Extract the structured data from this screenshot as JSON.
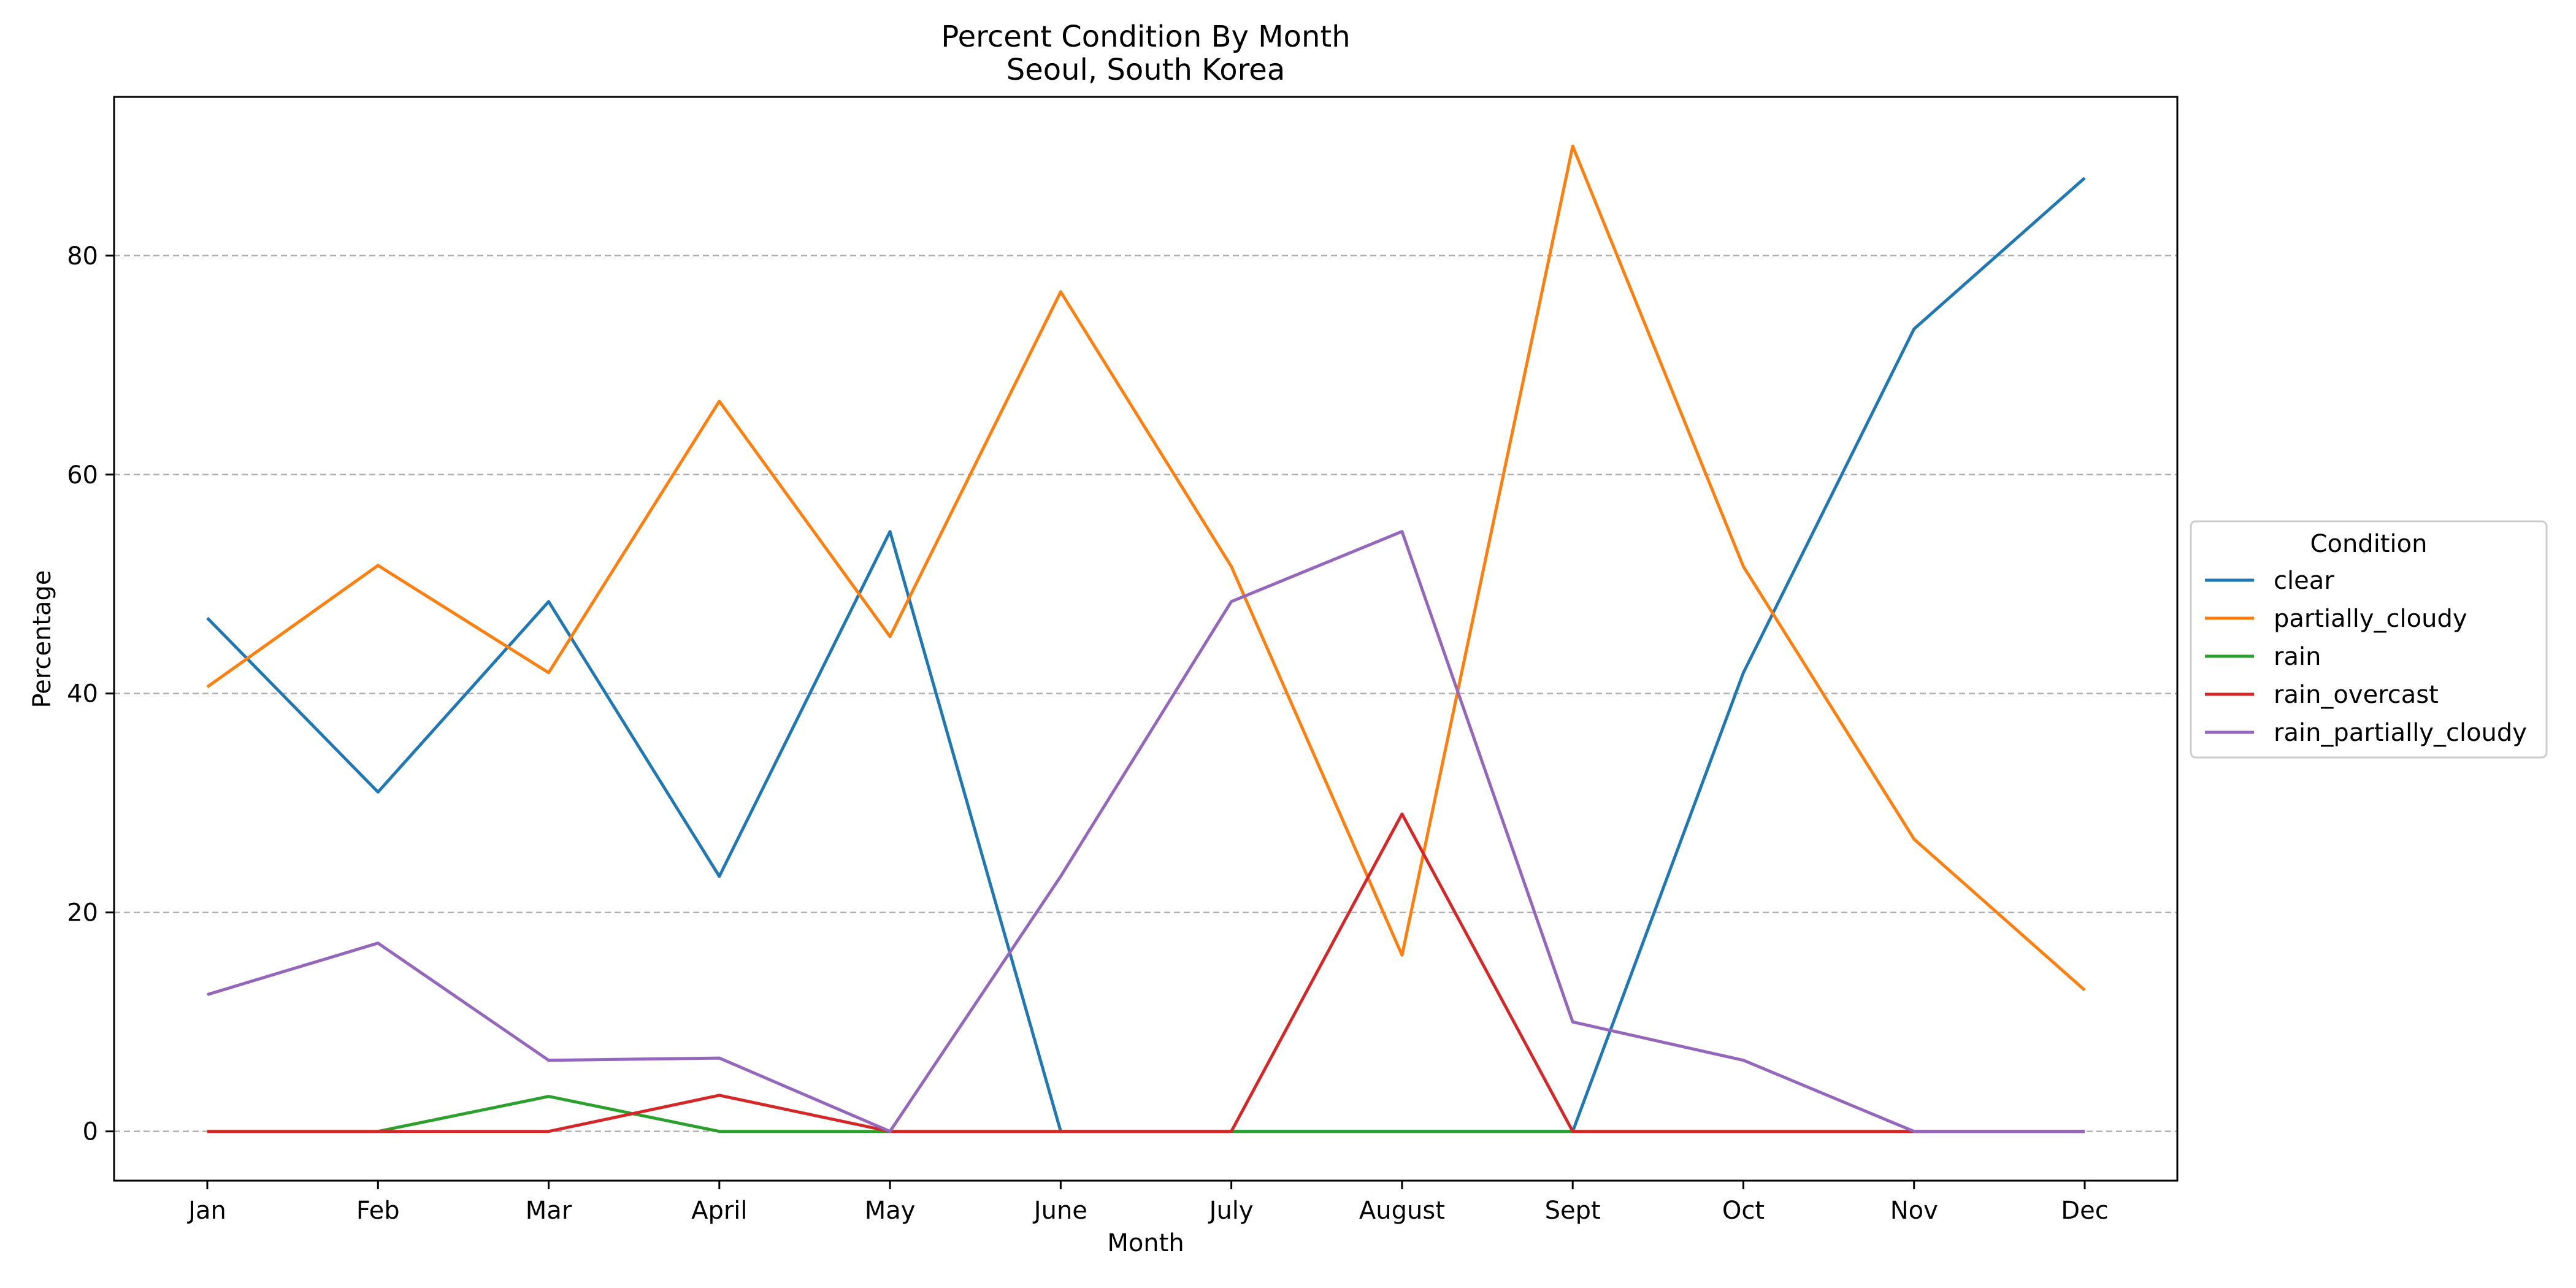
{
  "chart_data": {
    "type": "line",
    "title": "Percent Condition By Month",
    "subtitle": "Seoul, South Korea",
    "xlabel": "Month",
    "ylabel": "Percentage",
    "categories": [
      "Jan",
      "Feb",
      "Mar",
      "April",
      "May",
      "June",
      "July",
      "August",
      "Sept",
      "Oct",
      "Nov",
      "Dec"
    ],
    "ylim": [
      -4.5,
      94.5
    ],
    "yticks": [
      0,
      20,
      40,
      60,
      80
    ],
    "grid": "horizontal-dashed",
    "legend_title": "Condition",
    "legend_position": "right-outside",
    "series": [
      {
        "name": "clear",
        "color": "#1f77b4",
        "values": [
          46.9,
          31.0,
          48.4,
          23.3,
          54.8,
          0.0,
          0.0,
          0.0,
          0.0,
          41.9,
          73.3,
          87.1
        ]
      },
      {
        "name": "partially_cloudy",
        "color": "#ff7f0e",
        "values": [
          40.6,
          51.7,
          41.9,
          66.7,
          45.2,
          76.7,
          51.6,
          16.1,
          90.0,
          51.6,
          26.7,
          12.9
        ]
      },
      {
        "name": "rain",
        "color": "#2ca02c",
        "values": [
          0.0,
          0.0,
          3.2,
          0.0,
          0.0,
          0.0,
          0.0,
          0.0,
          0.0,
          0.0,
          0.0,
          0.0
        ]
      },
      {
        "name": "rain_overcast",
        "color": "#d62728",
        "values": [
          0.0,
          0.0,
          0.0,
          3.3,
          0.0,
          0.0,
          0.0,
          29.0,
          0.0,
          0.0,
          0.0,
          0.0
        ]
      },
      {
        "name": "rain_partially_cloudy",
        "color": "#9467bd",
        "values": [
          12.5,
          17.2,
          6.5,
          6.7,
          0.0,
          23.3,
          48.4,
          54.8,
          10.0,
          6.5,
          0.0,
          0.0
        ]
      }
    ]
  }
}
